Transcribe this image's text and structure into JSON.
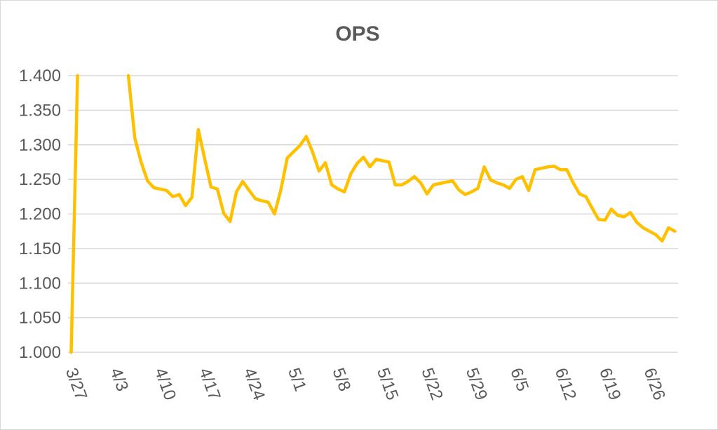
{
  "chart_data": {
    "type": "line",
    "title": "OPS",
    "xlabel": "",
    "ylabel": "",
    "ylim": [
      1.0,
      1.4
    ],
    "y_ticks": [
      "1.000",
      "1.050",
      "1.100",
      "1.150",
      "1.200",
      "1.250",
      "1.300",
      "1.350",
      "1.400"
    ],
    "y_tick_values": [
      1.0,
      1.05,
      1.1,
      1.15,
      1.2,
      1.25,
      1.3,
      1.35,
      1.4
    ],
    "x_tick_labels": [
      "3/27",
      "4/3",
      "4/10",
      "4/17",
      "4/24",
      "5/1",
      "5/8",
      "5/15",
      "5/22",
      "5/29",
      "6/5",
      "6/12",
      "6/19",
      "6/26"
    ],
    "x_tick_day_index": [
      0,
      7,
      14,
      21,
      28,
      35,
      42,
      49,
      56,
      63,
      70,
      77,
      84,
      91
    ],
    "x_range": [
      -0.5,
      95.5
    ],
    "grid": true,
    "legend": "none",
    "color": "#FFC000",
    "series": [
      {
        "name": "OPS",
        "x": [
          0,
          1,
          9,
          10,
          11,
          12,
          13,
          14,
          15,
          16,
          17,
          18,
          19,
          20,
          21,
          22,
          23,
          24,
          25,
          26,
          27,
          28,
          29,
          30,
          31,
          32,
          33,
          34,
          35,
          36,
          37,
          38,
          39,
          40,
          41,
          42,
          43,
          44,
          45,
          46,
          47,
          48,
          49,
          50,
          51,
          52,
          53,
          54,
          55,
          56,
          57,
          58,
          59,
          60,
          61,
          62,
          63,
          64,
          65,
          66,
          67,
          68,
          69,
          70,
          71,
          72,
          73,
          74,
          75,
          76,
          77,
          78,
          79,
          80,
          81,
          82,
          83,
          84,
          85,
          86,
          87,
          88,
          89,
          90,
          91,
          92,
          93,
          94,
          95
        ],
        "values": [
          1.0,
          1.4,
          1.4,
          1.31,
          1.275,
          1.248,
          1.238,
          1.236,
          1.234,
          1.225,
          1.228,
          1.212,
          1.224,
          1.322,
          1.28,
          1.239,
          1.236,
          1.201,
          1.189,
          1.232,
          1.247,
          1.234,
          1.222,
          1.219,
          1.217,
          1.2,
          1.235,
          1.281,
          1.29,
          1.299,
          1.312,
          1.289,
          1.262,
          1.274,
          1.242,
          1.236,
          1.232,
          1.258,
          1.273,
          1.282,
          1.268,
          1.279,
          1.277,
          1.275,
          1.242,
          1.242,
          1.247,
          1.254,
          1.245,
          1.229,
          1.242,
          1.244,
          1.246,
          1.248,
          1.235,
          1.228,
          1.232,
          1.237,
          1.268,
          1.249,
          1.245,
          1.242,
          1.237,
          1.25,
          1.254,
          1.234,
          1.264,
          1.266,
          1.268,
          1.269,
          1.264,
          1.264,
          1.245,
          1.229,
          1.225,
          1.208,
          1.192,
          1.191,
          1.207,
          1.198,
          1.196,
          1.202,
          1.188,
          1.18,
          1.175,
          1.17,
          1.161,
          1.18,
          1.175
        ]
      }
    ]
  }
}
